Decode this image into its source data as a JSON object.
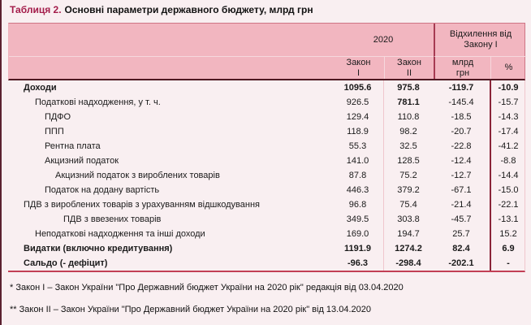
{
  "page": {
    "background": "#f9eff1",
    "accent_color": "#a31c4a",
    "header_pink": "#f2b6c0",
    "divider_red": "#a63b52"
  },
  "title": {
    "prefix": "Таблиця 2.",
    "text": "Основні параметри державного бюджету, млрд грн"
  },
  "table": {
    "group_headers": {
      "year": "2020",
      "deviation": "Відхилення від\nЗакону I"
    },
    "columns": {
      "law1": "Закон\nI",
      "law2": "Закон\nII",
      "bln": "млрд\nгрн",
      "pct": "%"
    },
    "rows": [
      {
        "label": "Доходи",
        "indent": 0,
        "bold": true,
        "values": [
          "1095.6",
          "975.8",
          "-119.7",
          "-10.9"
        ],
        "values_bold": [
          true,
          true,
          true,
          true
        ]
      },
      {
        "label": "Податкові надходження, у т. ч.",
        "indent": 1,
        "bold": false,
        "values": [
          "926.5",
          "781.1",
          "-145.4",
          "-15.7"
        ],
        "values_bold": [
          false,
          true,
          false,
          false
        ]
      },
      {
        "label": "ПДФО",
        "indent": 2,
        "bold": false,
        "values": [
          "129.4",
          "110.8",
          "-18.5",
          "-14.3"
        ],
        "values_bold": [
          false,
          false,
          false,
          false
        ]
      },
      {
        "label": "ППП",
        "indent": 2,
        "bold": false,
        "values": [
          "118.9",
          "98.2",
          "-20.7",
          "-17.4"
        ],
        "values_bold": [
          false,
          false,
          false,
          false
        ]
      },
      {
        "label": "Рентна плата",
        "indent": 2,
        "bold": false,
        "values": [
          "55.3",
          "32.5",
          "-22.8",
          "-41.2"
        ],
        "values_bold": [
          false,
          false,
          false,
          false
        ]
      },
      {
        "label": "Акцизний податок",
        "indent": 2,
        "bold": false,
        "values": [
          "141.0",
          "128.5",
          "-12.4",
          "-8.8"
        ],
        "values_bold": [
          false,
          false,
          false,
          false
        ]
      },
      {
        "label": "Акцизний податок з вироблених товарів",
        "indent": 3,
        "bold": false,
        "values": [
          "87.8",
          "75.2",
          "-12.7",
          "-14.4"
        ],
        "values_bold": [
          false,
          false,
          false,
          false
        ]
      },
      {
        "label": "Податок на додану вартість",
        "indent": 2,
        "bold": false,
        "values": [
          "446.3",
          "379.2",
          "-67.1",
          "-15.0"
        ],
        "values_bold": [
          false,
          false,
          false,
          false
        ]
      },
      {
        "label": "ПДВ з вироблених товарів з урахуванням відшкодування",
        "indent": 0,
        "bold": false,
        "values": [
          "96.8",
          "75.4",
          "-21.4",
          "-22.1"
        ],
        "values_bold": [
          false,
          false,
          false,
          false
        ]
      },
      {
        "label": "ПДВ з ввезених товарів",
        "indent": 4,
        "bold": false,
        "values": [
          "349.5",
          "303.8",
          "-45.7",
          "-13.1"
        ],
        "values_bold": [
          false,
          false,
          false,
          false
        ]
      },
      {
        "label": "Неподаткові надходження та інші доходи",
        "indent": 1,
        "bold": false,
        "values": [
          "169.0",
          "194.7",
          "25.7",
          "15.2"
        ],
        "values_bold": [
          false,
          false,
          false,
          false
        ]
      },
      {
        "label": "Видатки (включно кредитування)",
        "indent": 0,
        "bold": true,
        "values": [
          "1191.9",
          "1274.2",
          "82.4",
          "6.9"
        ],
        "values_bold": [
          true,
          true,
          true,
          true
        ]
      },
      {
        "label": "Сальдо (- дефіцит)",
        "indent": 0,
        "bold": true,
        "values": [
          "-96.3",
          "-298.4",
          "-202.1",
          "-"
        ],
        "values_bold": [
          true,
          true,
          true,
          true
        ]
      }
    ]
  },
  "footnotes": [
    "* Закон I – Закон України \"Про Державний бюджет України на 2020 рік\" редакція від 03.04.2020",
    "** Закон II – Закон України \"Про Державний бюджет України на 2020 рік\" від 13.04.2020"
  ]
}
